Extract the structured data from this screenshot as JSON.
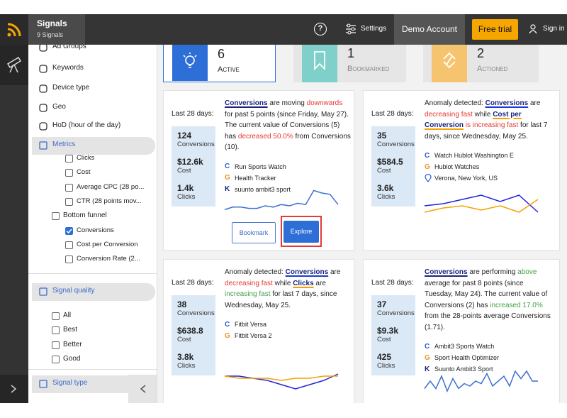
{
  "header": {
    "title": "Signals",
    "subtitle": "9 Signals",
    "help": "?",
    "settings": "Settings",
    "account": "Demo Account",
    "trial": "Free trial",
    "sign_in": "Sign in"
  },
  "sidebar": {
    "items": [
      {
        "label": "Ad Groups",
        "kind": "nav"
      },
      {
        "label": "Keywords",
        "kind": "nav"
      },
      {
        "label": "Device type",
        "kind": "nav"
      },
      {
        "label": "Geo",
        "kind": "nav"
      },
      {
        "label": "HoD (hour of the day)",
        "kind": "nav"
      },
      {
        "label": "Metrics",
        "kind": "section"
      },
      {
        "label": "Clicks",
        "kind": "sub",
        "checked": false
      },
      {
        "label": "Cost",
        "kind": "sub",
        "checked": false
      },
      {
        "label": "Average CPC (28 po...",
        "kind": "sub",
        "checked": false
      },
      {
        "label": "CTR (28 points mov...",
        "kind": "sub",
        "checked": false
      },
      {
        "label": "Bottom funnel",
        "kind": "group",
        "checked": false
      },
      {
        "label": "Conversions",
        "kind": "sub",
        "checked": true
      },
      {
        "label": "Cost per Conversion",
        "kind": "sub",
        "checked": false
      },
      {
        "label": "Conversion Rate (2...",
        "kind": "sub",
        "checked": false
      },
      {
        "label": "Signal quality",
        "kind": "section"
      },
      {
        "label": "All",
        "kind": "group",
        "checked": false
      },
      {
        "label": "Best",
        "kind": "group",
        "checked": false
      },
      {
        "label": "Better",
        "kind": "group",
        "checked": false
      },
      {
        "label": "Good",
        "kind": "group",
        "checked": false
      },
      {
        "label": "Signal type",
        "kind": "section"
      }
    ]
  },
  "tabs": [
    {
      "count": 6,
      "label": "Active",
      "selected": true,
      "color": "#2d6fd6"
    },
    {
      "count": 1,
      "label": "Bookmarked",
      "selected": false,
      "color": "#7fd0cb"
    },
    {
      "count": 2,
      "label": "Actioned",
      "selected": false,
      "color": "#f6c46e"
    }
  ],
  "cards": [
    {
      "period": "Last 28 days:",
      "stats": [
        {
          "value": 124,
          "label": "Conversions"
        },
        {
          "value": "$12.6k",
          "label": "Cost"
        },
        {
          "value": "1.4k",
          "label": "Clicks"
        }
      ],
      "message": [
        {
          "text": "Conversions",
          "bold": true,
          "underline": "#1a237e",
          "color": "#1a237e"
        },
        {
          "text": " are moving "
        },
        {
          "text": "downwards",
          "color": "#e53935"
        },
        {
          "text": " for past 5 points (since Friday, May 27). The current value of Conversions (5) has "
        },
        {
          "text": "decreased 50.0%",
          "color": "#e53935"
        },
        {
          "text": " from Conversions (10)."
        }
      ],
      "entities": [
        {
          "icon": "C",
          "name": "Run Sports Watch"
        },
        {
          "icon": "G",
          "name": "Health Tracker"
        },
        {
          "icon": "K",
          "name": "suunto ambit3 sport"
        }
      ],
      "buttons": [
        "Bookmark",
        "Explore"
      ],
      "sparkline": {
        "ylim": [
          0,
          10
        ],
        "series": [
          {
            "color": "#3a6fd0",
            "values": [
              1,
              2,
              2,
              1.5,
              1.5,
              2.5,
              2,
              3,
              2.5,
              3.5,
              3,
              8.5,
              7.5,
              7,
              3
            ]
          }
        ]
      }
    },
    {
      "period": "Last 28 days:",
      "stats": [
        {
          "value": 35,
          "label": "Conversions"
        },
        {
          "value": "$584.5",
          "label": "Cost"
        },
        {
          "value": "3.6k",
          "label": "Clicks"
        }
      ],
      "message": [
        {
          "text": "Anomaly detected: "
        },
        {
          "text": "Conversions",
          "bold": true,
          "underline": "#1a3bd1",
          "color": "#1a237e"
        },
        {
          "text": " are "
        },
        {
          "text": "decreasing fast",
          "color": "#e53935"
        },
        {
          "text": " while "
        },
        {
          "text": "Cost per Conversion",
          "bold": true,
          "underline": "#f5a000",
          "color": "#1a237e"
        },
        {
          "text": " "
        },
        {
          "text": "is increasing fast",
          "color": "#e53935"
        },
        {
          "text": " for last 7 days, since Wednesday, May 25."
        }
      ],
      "entities": [
        {
          "icon": "C",
          "name": "Watch Hublot Washington E"
        },
        {
          "icon": "G",
          "name": "Hublot Watches"
        },
        {
          "name": "Verona, New York, US"
        }
      ],
      "sparkline": {
        "ylim": [
          0,
          10
        ],
        "series": [
          {
            "color": "#2222dd",
            "values": [
              3,
              4,
              6,
              8,
              5,
              8,
              0
            ]
          },
          {
            "color": "#f5a000",
            "values": [
              0,
              2,
              3,
              1,
              3,
              0,
              6
            ]
          }
        ]
      }
    },
    {
      "period": "Last 28 days:",
      "stats": [
        {
          "value": 38,
          "label": "Conversions"
        },
        {
          "value": "$638.8",
          "label": "Cost"
        },
        {
          "value": "3.8k",
          "label": "Clicks"
        }
      ],
      "message": [
        {
          "text": "Anomaly detected: "
        },
        {
          "text": "Conversions",
          "bold": true,
          "underline": "#1a3bd1",
          "color": "#1a237e"
        },
        {
          "text": " are "
        },
        {
          "text": "decreasing fast",
          "color": "#e53935"
        },
        {
          "text": " while "
        },
        {
          "text": "Clicks",
          "bold": true,
          "underline": "#f5a000",
          "color": "#1a237e"
        },
        {
          "text": " are "
        },
        {
          "text": "increasing fast",
          "color": "#43a047"
        },
        {
          "text": " for last 7 days, since Wednesday, May 25."
        }
      ],
      "entities": [
        {
          "icon": "C",
          "name": "Fitbit Versa"
        },
        {
          "icon": "G",
          "name": "Fitbit Versa 2"
        }
      ],
      "sparkline": {
        "ylim": [
          0,
          10
        ],
        "series": [
          {
            "color": "#2222dd",
            "values": [
              6,
              6,
              5,
              4,
              2,
              0,
              2,
              4,
              7
            ]
          },
          {
            "color": "#f5a000",
            "values": [
              6,
              5,
              5,
              5,
              4,
              5,
              5,
              6,
              6
            ]
          }
        ]
      }
    },
    {
      "period": "Last 28 days:",
      "stats": [
        {
          "value": 37,
          "label": "Conversions"
        },
        {
          "value": "$9.3k",
          "label": "Cost"
        },
        {
          "value": 425,
          "label": "Clicks"
        }
      ],
      "message": [
        {
          "text": "Conversions",
          "bold": true,
          "underline": "#1a237e",
          "color": "#1a237e"
        },
        {
          "text": " are performing "
        },
        {
          "text": "above",
          "color": "#43a047"
        },
        {
          "text": " average for past 8 points (since Tuesday, May 24). The current value of Conversions (2) has "
        },
        {
          "text": "increased 17.0%",
          "color": "#43a047"
        },
        {
          "text": " from the 28-points average Conversions (1.71)."
        }
      ],
      "entities": [
        {
          "icon": "C",
          "name": "Ambit3 Sports Watch"
        },
        {
          "icon": "G",
          "name": "Sport Health Optimizer"
        },
        {
          "icon": "K",
          "name": "Suunto Ambit3 Sport"
        }
      ],
      "sparkline": {
        "ylim": [
          0,
          10
        ],
        "series": [
          {
            "color": "#3a6fd0",
            "values": [
              1,
              4,
              1,
              6,
              0,
              5,
              1,
              3,
              2,
              4,
              3,
              7,
              2,
              4,
              6,
              2,
              8,
              5,
              8,
              4,
              4
            ]
          }
        ]
      }
    }
  ]
}
